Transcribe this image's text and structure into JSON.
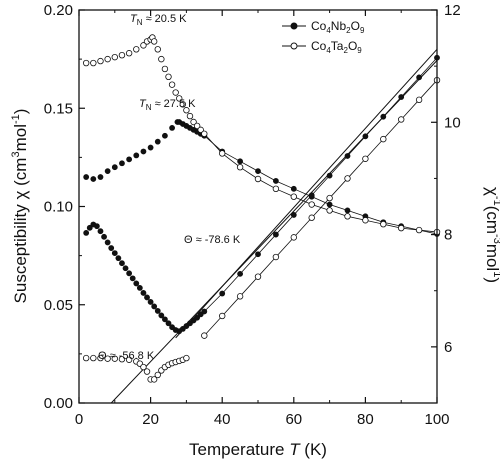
{
  "chart_data": {
    "type": "scatter",
    "title": "",
    "xlabel_main": "Temperature ",
    "xlabel_italic": "T",
    "xlabel_unit": " (K)",
    "ylabel_left_main": "Susceptibility  χ (cm",
    "ylabel_left_sup1": "3",
    "ylabel_left_mid": "mol",
    "ylabel_left_sup2": "-1",
    "ylabel_left_end": ")",
    "ylabel_right_chi": "χ",
    "ylabel_right_sup1": "-1",
    "ylabel_right_mid": "(cm",
    "ylabel_right_sup2": "-3",
    "ylabel_right_mol": "mol",
    "ylabel_right_sup3": "1",
    "ylabel_right_end": ")",
    "xlim": [
      0,
      100
    ],
    "ylim_left": [
      0,
      0.2
    ],
    "ylim_right": [
      5,
      12
    ],
    "x_ticks": [
      "0",
      "20",
      "40",
      "60",
      "80",
      "100"
    ],
    "y_left_ticks": [
      "0.00",
      "0.05",
      "0.10",
      "0.15",
      "0.20"
    ],
    "y_right_ticks": [
      "6",
      "8",
      "10",
      "12"
    ],
    "grid": false,
    "legend_position": "top-right",
    "legend": [
      {
        "name_base": "Co",
        "sub1": "4",
        "mid1": "Nb",
        "sub2": "2",
        "mid2": "O",
        "sub3": "9",
        "marker": "filled"
      },
      {
        "name_base": "Co",
        "sub1": "4",
        "mid1": "Ta",
        "sub2": "2",
        "mid2": "O",
        "sub3": "9",
        "marker": "open"
      }
    ],
    "annotations": {
      "tn_ta_prefix": "T",
      "tn_ta_sub": "N",
      "tn_ta_value": " ≈ 20.5 K",
      "tn_nb_prefix": "T",
      "tn_nb_sub": "N",
      "tn_nb_value": " ≈ 27.5 K",
      "theta_nb": "Θ ≈ -78.6 K",
      "theta_ta": "Θ ≈ -56.8 K"
    },
    "series": [
      {
        "name": "Co4Nb2O9 χ",
        "axis": "left",
        "marker": "filled",
        "points": [
          [
            2,
            0.115
          ],
          [
            4,
            0.114
          ],
          [
            6,
            0.115
          ],
          [
            8,
            0.118
          ],
          [
            10,
            0.12
          ],
          [
            12,
            0.122
          ],
          [
            14,
            0.124
          ],
          [
            16,
            0.126
          ],
          [
            18,
            0.128
          ],
          [
            20,
            0.13
          ],
          [
            22,
            0.133
          ],
          [
            24,
            0.136
          ],
          [
            26,
            0.14
          ],
          [
            27.5,
            0.143
          ],
          [
            28,
            0.143
          ],
          [
            29,
            0.142
          ],
          [
            30,
            0.141
          ],
          [
            31,
            0.14
          ],
          [
            32,
            0.139
          ],
          [
            33,
            0.138
          ],
          [
            34,
            0.137
          ],
          [
            35,
            0.136
          ],
          [
            40,
            0.128
          ],
          [
            45,
            0.123
          ],
          [
            50,
            0.118
          ],
          [
            55,
            0.113
          ],
          [
            60,
            0.109
          ],
          [
            65,
            0.105
          ],
          [
            70,
            0.101
          ],
          [
            75,
            0.098
          ],
          [
            80,
            0.095
          ],
          [
            85,
            0.092
          ],
          [
            90,
            0.09
          ],
          [
            95,
            0.088
          ],
          [
            100,
            0.086
          ]
        ]
      },
      {
        "name": "Co4Ta2O9 χ",
        "axis": "left",
        "marker": "open",
        "points": [
          [
            2,
            0.173
          ],
          [
            4,
            0.173
          ],
          [
            6,
            0.174
          ],
          [
            8,
            0.175
          ],
          [
            10,
            0.176
          ],
          [
            12,
            0.177
          ],
          [
            14,
            0.178
          ],
          [
            16,
            0.18
          ],
          [
            18,
            0.182
          ],
          [
            19,
            0.184
          ],
          [
            20,
            0.185
          ],
          [
            20.5,
            0.186
          ],
          [
            21,
            0.184
          ],
          [
            22,
            0.18
          ],
          [
            23,
            0.175
          ],
          [
            24,
            0.17
          ],
          [
            25,
            0.166
          ],
          [
            26,
            0.162
          ],
          [
            27,
            0.158
          ],
          [
            28,
            0.155
          ],
          [
            29,
            0.152
          ],
          [
            30,
            0.149
          ],
          [
            31,
            0.146
          ],
          [
            32,
            0.143
          ],
          [
            33,
            0.141
          ],
          [
            34,
            0.139
          ],
          [
            35,
            0.137
          ],
          [
            40,
            0.127
          ],
          [
            45,
            0.12
          ],
          [
            50,
            0.114
          ],
          [
            55,
            0.109
          ],
          [
            60,
            0.105
          ],
          [
            65,
            0.101
          ],
          [
            70,
            0.098
          ],
          [
            75,
            0.095
          ],
          [
            80,
            0.093
          ],
          [
            85,
            0.091
          ],
          [
            90,
            0.089
          ],
          [
            95,
            0.088
          ],
          [
            100,
            0.087
          ]
        ]
      },
      {
        "name": "Co4Nb2O9 χ⁻¹",
        "axis": "right",
        "marker": "filled",
        "points": [
          [
            2,
            8.03
          ],
          [
            3,
            8.12
          ],
          [
            4,
            8.18
          ],
          [
            5,
            8.15
          ],
          [
            6,
            8.06
          ],
          [
            7,
            7.96
          ],
          [
            8,
            7.86
          ],
          [
            9,
            7.76
          ],
          [
            10,
            7.67
          ],
          [
            11,
            7.58
          ],
          [
            12,
            7.49
          ],
          [
            13,
            7.4
          ],
          [
            14,
            7.31
          ],
          [
            15,
            7.22
          ],
          [
            16,
            7.13
          ],
          [
            17,
            7.05
          ],
          [
            18,
            6.96
          ],
          [
            19,
            6.88
          ],
          [
            20,
            6.8
          ],
          [
            21,
            6.72
          ],
          [
            22,
            6.64
          ],
          [
            23,
            6.56
          ],
          [
            24,
            6.49
          ],
          [
            25,
            6.42
          ],
          [
            26,
            6.35
          ],
          [
            27,
            6.3
          ],
          [
            28,
            6.28
          ],
          [
            29,
            6.32
          ],
          [
            30,
            6.37
          ],
          [
            31,
            6.42
          ],
          [
            32,
            6.47
          ],
          [
            33,
            6.52
          ],
          [
            34,
            6.58
          ],
          [
            35,
            6.63
          ],
          [
            40,
            6.95
          ],
          [
            45,
            7.3
          ],
          [
            50,
            7.65
          ],
          [
            55,
            8.0
          ],
          [
            60,
            8.35
          ],
          [
            65,
            8.7
          ],
          [
            70,
            9.05
          ],
          [
            75,
            9.4
          ],
          [
            80,
            9.75
          ],
          [
            85,
            10.1
          ],
          [
            90,
            10.45
          ],
          [
            95,
            10.8
          ],
          [
            100,
            11.15
          ]
        ]
      },
      {
        "name": "Co4Ta2O9 χ⁻¹",
        "axis": "right",
        "marker": "open",
        "points": [
          [
            2,
            5.8
          ],
          [
            4,
            5.8
          ],
          [
            6,
            5.8
          ],
          [
            8,
            5.79
          ],
          [
            10,
            5.79
          ],
          [
            12,
            5.78
          ],
          [
            14,
            5.77
          ],
          [
            16,
            5.74
          ],
          [
            17,
            5.7
          ],
          [
            18,
            5.64
          ],
          [
            19,
            5.56
          ],
          [
            20,
            5.42
          ],
          [
            21,
            5.42
          ],
          [
            22,
            5.5
          ],
          [
            23,
            5.58
          ],
          [
            24,
            5.64
          ],
          [
            25,
            5.68
          ],
          [
            26,
            5.71
          ],
          [
            27,
            5.73
          ],
          [
            28,
            5.75
          ],
          [
            29,
            5.77
          ],
          [
            30,
            5.8
          ],
          [
            35,
            6.2
          ],
          [
            40,
            6.55
          ],
          [
            45,
            6.9
          ],
          [
            50,
            7.25
          ],
          [
            55,
            7.6
          ],
          [
            60,
            7.95
          ],
          [
            65,
            8.3
          ],
          [
            70,
            8.65
          ],
          [
            75,
            9.0
          ],
          [
            80,
            9.35
          ],
          [
            85,
            9.7
          ],
          [
            90,
            10.05
          ],
          [
            95,
            10.4
          ],
          [
            100,
            10.75
          ]
        ]
      }
    ],
    "fit_lines": [
      {
        "name": "Curie-Weiss fit Co4Nb2O9",
        "axis": "right",
        "x": [
          27,
          100
        ],
        "y": [
          6.16,
          11.3
        ]
      },
      {
        "name": "Curie-Weiss fit Co4Ta2O9",
        "axis": "right",
        "x": [
          9,
          100
        ],
        "y": [
          5.0,
          11.1
        ]
      }
    ]
  }
}
